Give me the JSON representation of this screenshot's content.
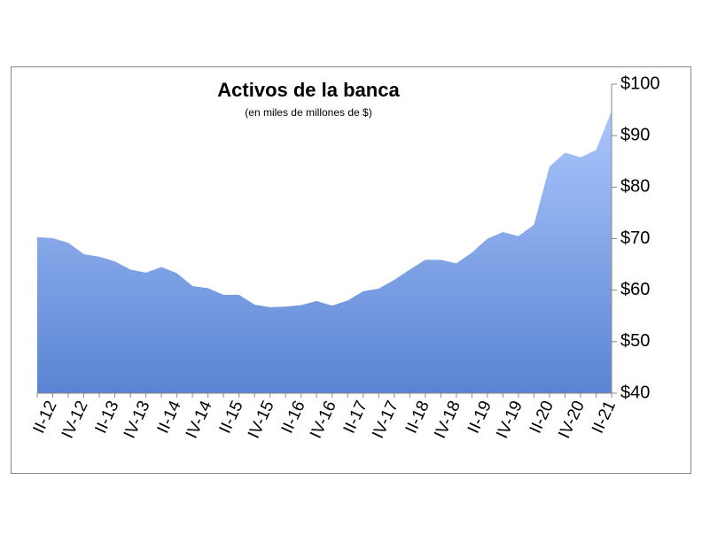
{
  "chart_data": {
    "type": "area",
    "title": "Activos de la banca",
    "subtitle": "(en miles de millones de $)",
    "categories": [
      null,
      "II-12",
      null,
      "IV-12",
      null,
      "II-13",
      null,
      "IV-13",
      null,
      "II-14",
      null,
      "IV-14",
      null,
      "II-15",
      null,
      "IV-15",
      null,
      "II-16",
      null,
      "IV-16",
      null,
      "II-17",
      null,
      "IV-17",
      null,
      "II-18",
      null,
      "IV-18",
      null,
      "II-19",
      null,
      "IV-19",
      null,
      "II-20",
      null,
      "IV-20",
      null,
      "II-21"
    ],
    "values": [
      70.3,
      70.1,
      69.2,
      67,
      66.5,
      65.6,
      64,
      63.4,
      64.5,
      63.3,
      60.8,
      60.4,
      59.1,
      59.1,
      57.2,
      56.7,
      56.8,
      57.1,
      57.9,
      57,
      58,
      59.8,
      60.3,
      62,
      64,
      65.9,
      65.9,
      65.2,
      67.3,
      70,
      71.3,
      70.5,
      72.7,
      84,
      86.7,
      85.8,
      87.2,
      94.8
    ],
    "colors": [
      "#abc6fc",
      "#5a84d3"
    ],
    "ylim": [
      40,
      100
    ],
    "yticks": [
      {
        "value": 40,
        "label": "$40"
      },
      {
        "value": 50,
        "label": "$50"
      },
      {
        "value": 60,
        "label": "$60"
      },
      {
        "value": 70,
        "label": "$70"
      },
      {
        "value": 80,
        "label": "$80"
      },
      {
        "value": 90,
        "label": "$90"
      },
      {
        "value": 100,
        "label": "$100"
      }
    ],
    "yaxis_side": "right",
    "grid": false
  }
}
